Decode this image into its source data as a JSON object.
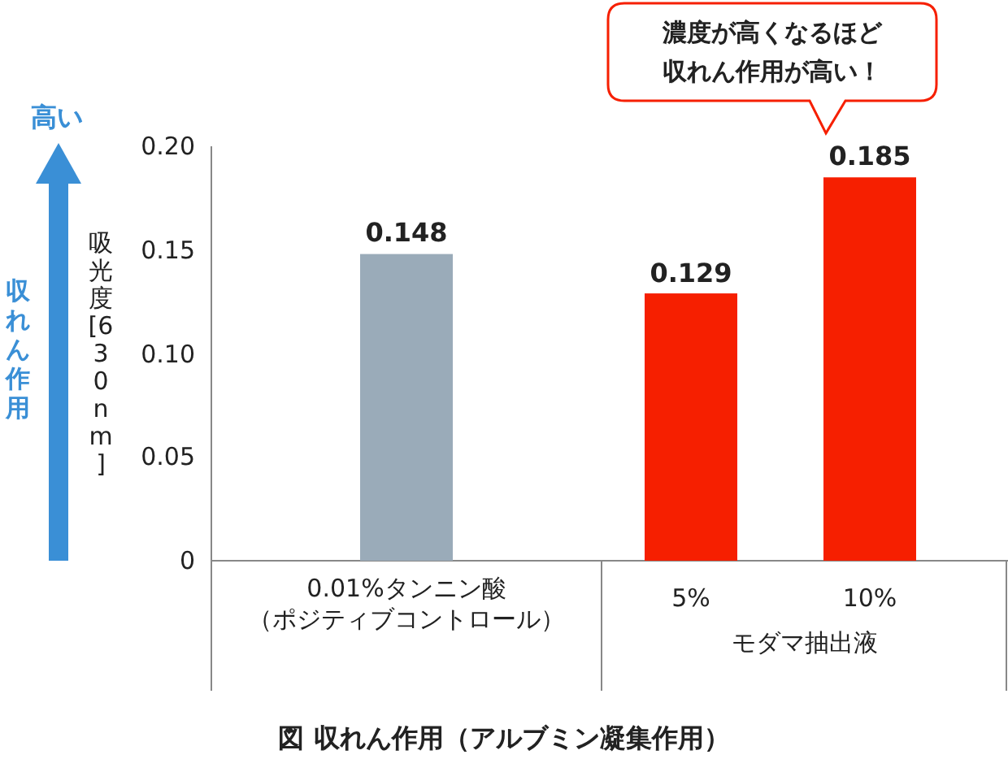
{
  "chart_data": {
    "type": "bar",
    "title": "図 収れん作用（アルブミン凝集作用）",
    "ylabel": "吸光度[630nm]",
    "categories": [
      "0.01%タンニン酸（ポジティブコントロール）",
      "5%",
      "10%"
    ],
    "values": [
      0.148,
      0.129,
      0.185
    ],
    "colors": [
      "#9aabb9",
      "#f61f00",
      "#f61f00"
    ],
    "ylim": [
      0,
      0.2
    ],
    "yticks": [
      0,
      0.05,
      {
        "value": 0.1,
        "label": "0.10"
      },
      0.15,
      {
        "value": 0.2,
        "label": "0.20"
      }
    ],
    "data_labels": true,
    "annotations": [
      "高い",
      "収れん作用",
      "濃度が高くなるほど収れん作用が高い！",
      "モダマ抽出液"
    ]
  }
}
